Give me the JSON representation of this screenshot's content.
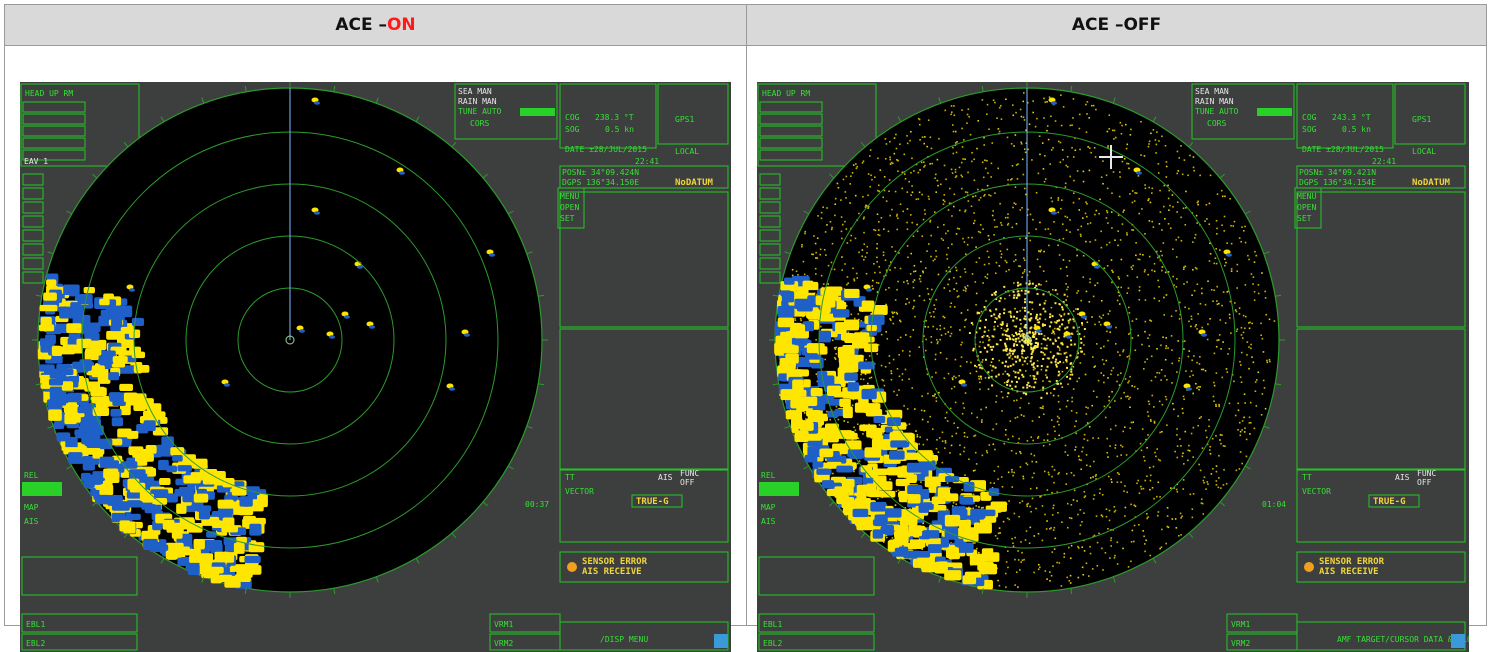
{
  "columns": [
    {
      "prefix": "ACE – ",
      "state": "ON"
    },
    {
      "prefix": "ACE – ",
      "state": "OFF"
    }
  ],
  "radar_panels": [
    {
      "mode": "ace-on",
      "top_left": [
        "HEAD UP RM",
        "VECTOR"
      ],
      "ship_info": [
        "COG",
        "SOG",
        "238.3 °T",
        "0.5 kn"
      ],
      "gain_labels": [
        "SEA MAN",
        "RAIN MAN",
        "TUNE AUTO",
        "CORS"
      ],
      "sensor": "GPS1",
      "date": "DATE ±28/JUL/2015",
      "time": "22:41",
      "time_ref": "LOCAL",
      "pos_lat": "POSN± 34°09.424N",
      "pos_lon": "DGPS 136°34.150E",
      "datum": "NoDATUM",
      "menu": [
        "MENU",
        "OPEN",
        "SET"
      ],
      "tt": "TT",
      "ais": "AIS",
      "func": [
        "FUNC",
        "OFF"
      ],
      "clock": "00:37",
      "vector_mode": "TRUE-G",
      "alarm_title": "SENSOR ERROR",
      "alarm_detail": "AIS RECEIVE",
      "bottom_left": [
        "EBL1",
        "EBL2"
      ],
      "vrm": [
        "VRM1",
        "VRM2"
      ],
      "bottom_right": "/DISP MENU",
      "side_labels": [
        "EAV 1"
      ],
      "left_status": [
        "REL",
        "MAP",
        "AIS"
      ]
    },
    {
      "mode": "ace-off",
      "top_left": [
        "HEAD UP RM",
        "VECTOR"
      ],
      "ship_info": [
        "COG",
        "SOG",
        "243.3 °T",
        "0.5 kn"
      ],
      "gain_labels": [
        "SEA MAN",
        "RAIN MAN",
        "TUNE AUTO",
        "CORS"
      ],
      "sensor": "GPS1",
      "date": "DATE ±28/JUL/2015",
      "time": "22:41",
      "time_ref": "LOCAL",
      "pos_lat": "POSN± 34°09.421N",
      "pos_lon": "DGPS 136°34.154E",
      "datum": "NoDATUM",
      "menu": [
        "MENU",
        "OPEN",
        "SET"
      ],
      "tt": "TT",
      "ais": "AIS",
      "func": [
        "FUNC",
        "OFF"
      ],
      "clock": "01:04",
      "vector_mode": "TRUE-G",
      "alarm_title": "SENSOR ERROR",
      "alarm_detail": "AIS RECEIVE",
      "bottom_left": [
        "EBL1",
        "EBL2"
      ],
      "vrm": [
        "VRM1",
        "VRM2"
      ],
      "bottom_right": "AMF TARGET/CURSOR DATA & ALOG MENU",
      "side_labels": [],
      "left_status": [
        "REL",
        "MAP",
        "AIS"
      ]
    }
  ],
  "colors": {
    "header_bg": "#d9d9d9",
    "on_text": "#ff1a1a",
    "screen_bg": "#3d3f3e",
    "radar_bg": "#000000",
    "ui_green": "#35e035",
    "echo_yellow": "#ffe600",
    "echo_blue": "#1f5fc8"
  }
}
